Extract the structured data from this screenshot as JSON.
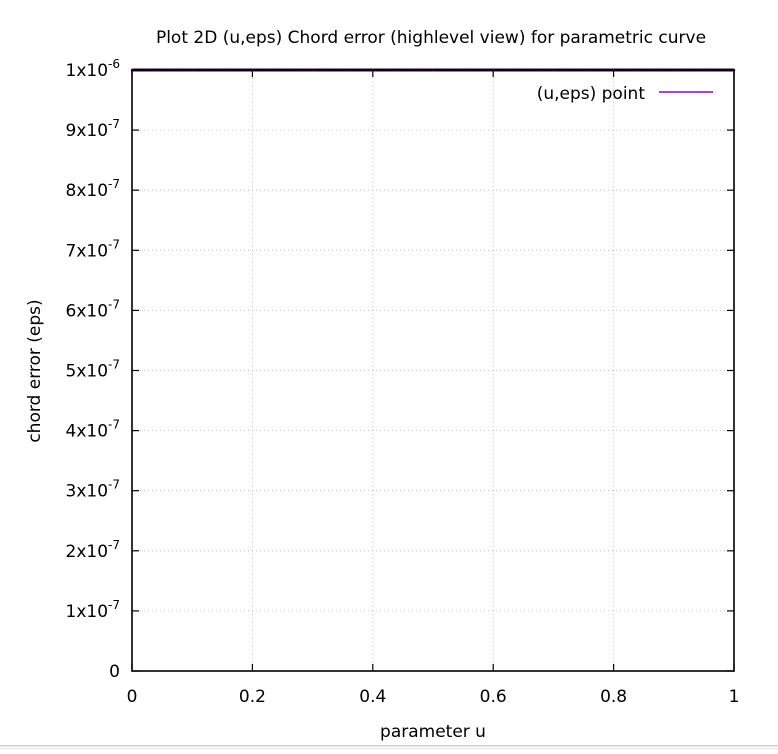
{
  "chart_data": {
    "type": "line",
    "title": "Plot 2D (u,eps) Chord error (highlevel view) for parametric curve",
    "xlabel": "parameter u",
    "ylabel": "chord error (eps)",
    "xlim": [
      0,
      1
    ],
    "ylim": [
      0,
      1e-06
    ],
    "grid": true,
    "legend_position": "top-right",
    "x_ticks": [
      {
        "value": 0,
        "label": "0"
      },
      {
        "value": 0.2,
        "label": "0.2"
      },
      {
        "value": 0.4,
        "label": "0.4"
      },
      {
        "value": 0.6,
        "label": "0.6"
      },
      {
        "value": 0.8,
        "label": "0.8"
      },
      {
        "value": 1,
        "label": "1"
      }
    ],
    "y_ticks": [
      {
        "value": 0,
        "mantissa": "0",
        "exponent": ""
      },
      {
        "value": 1e-07,
        "mantissa": "1x10",
        "exponent": "-7"
      },
      {
        "value": 2e-07,
        "mantissa": "2x10",
        "exponent": "-7"
      },
      {
        "value": 3e-07,
        "mantissa": "3x10",
        "exponent": "-7"
      },
      {
        "value": 4e-07,
        "mantissa": "4x10",
        "exponent": "-7"
      },
      {
        "value": 5e-07,
        "mantissa": "5x10",
        "exponent": "-7"
      },
      {
        "value": 6e-07,
        "mantissa": "6x10",
        "exponent": "-7"
      },
      {
        "value": 7e-07,
        "mantissa": "7x10",
        "exponent": "-7"
      },
      {
        "value": 8e-07,
        "mantissa": "8x10",
        "exponent": "-7"
      },
      {
        "value": 9e-07,
        "mantissa": "9x10",
        "exponent": "-7"
      },
      {
        "value": 1e-06,
        "mantissa": "1x10",
        "exponent": "-6"
      }
    ],
    "series": [
      {
        "name": "(u,eps) point",
        "color": "#9400d3",
        "x": [
          0,
          0.1,
          0.2,
          0.3,
          0.4,
          0.5,
          0.6,
          0.7,
          0.8,
          0.9,
          1
        ],
        "y": [
          1e-06,
          1e-06,
          1e-06,
          1e-06,
          1e-06,
          1e-06,
          1e-06,
          1e-06,
          1e-06,
          1e-06,
          1e-06
        ]
      }
    ]
  }
}
